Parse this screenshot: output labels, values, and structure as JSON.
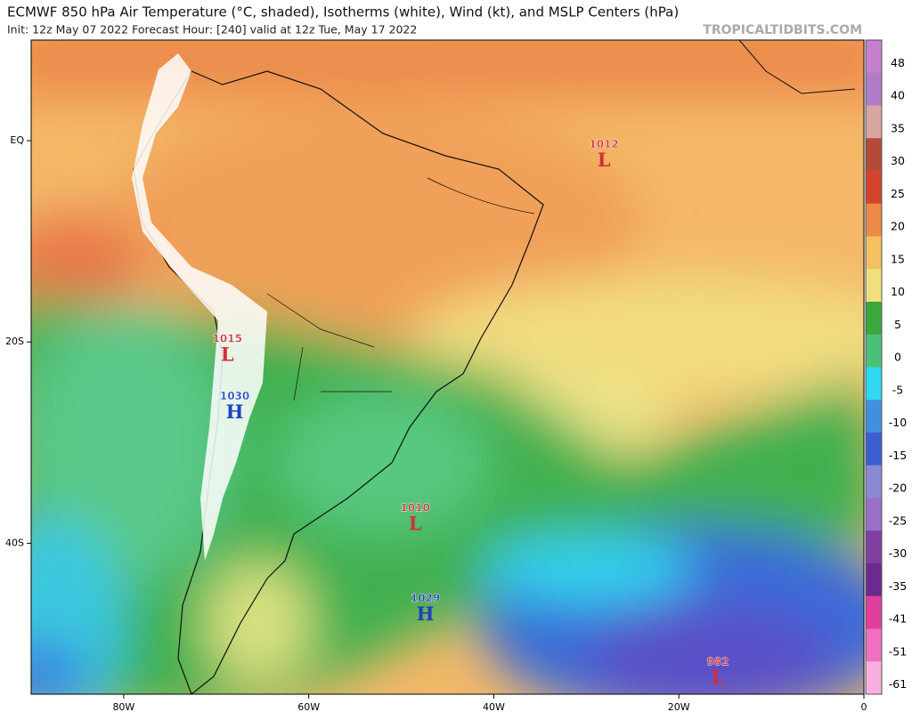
{
  "chart_data": {
    "type": "map",
    "title": "ECMWF 850 hPa Air Temperature (°C, shaded), Isotherms (white), Wind (kt), and MSLP Centers (hPa)",
    "subtitle": "Init: 12z May 07 2022   Forecast Hour: [240]   valid at 12z Tue, May 17 2022",
    "watermark": "TROPICALTIDBITS.COM",
    "xlim": [
      -90,
      0
    ],
    "ylim": [
      -55,
      10
    ],
    "xticks": [
      {
        "value": -80,
        "label": "80W"
      },
      {
        "value": -60,
        "label": "60W"
      },
      {
        "value": -40,
        "label": "40W"
      },
      {
        "value": -20,
        "label": "20W"
      },
      0
    ],
    "yticks": [
      {
        "value": 0,
        "label": "EQ"
      },
      {
        "value": -20,
        "label": "20S"
      },
      {
        "value": -40,
        "label": "40S"
      }
    ],
    "colorbar": {
      "ticks": [
        48,
        40,
        35,
        30,
        25,
        20,
        15,
        10,
        5,
        0,
        -5,
        -10,
        -15,
        -20,
        -25,
        -30,
        -35,
        -41,
        -51,
        -61
      ],
      "colors": [
        "#c77fd0",
        "#b07cc8",
        "#d8a6a0",
        "#b44a38",
        "#d4442c",
        "#ec8a48",
        "#f4c060",
        "#f0e080",
        "#3aa83a",
        "#4cc07a",
        "#30d8f0",
        "#4090e0",
        "#3a60d0",
        "#8a8ad0",
        "#9a70c8",
        "#8040a0",
        "#6a2a90",
        "#e0409a",
        "#f070c0",
        "#f8b0e0"
      ]
    },
    "pressure_centers": [
      {
        "value": 1012,
        "symbol": "L",
        "lon": -28.1,
        "lat": -1.9,
        "color": "#d0303a"
      },
      {
        "value": 1015,
        "symbol": "L",
        "lon": -68.8,
        "lat": -21.2,
        "color": "#d0303a"
      },
      {
        "value": 1030,
        "symbol": "H",
        "lon": -68,
        "lat": -26.9,
        "color": "#2040c0"
      },
      {
        "value": 1010,
        "symbol": "L",
        "lon": -48.5,
        "lat": -38,
        "color": "#d0303a"
      },
      {
        "value": 1029,
        "symbol": "H",
        "lon": -47.4,
        "lat": -47,
        "color": "#2040c0"
      },
      {
        "value": 982,
        "symbol": "L",
        "lon": -15.8,
        "lat": -53.3,
        "color": "#d0303a"
      }
    ]
  }
}
